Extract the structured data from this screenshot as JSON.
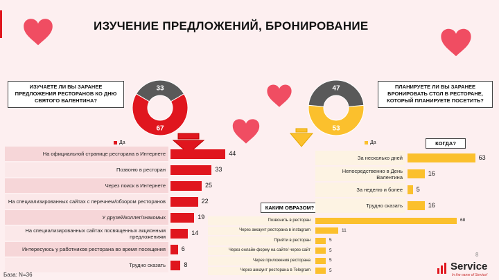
{
  "title": "ИЗУЧЕНИЕ ПРЕДЛОЖЕНИЙ, БРОНИРОВАНИЕ",
  "q1": "ИЗУЧАЕТЕ ЛИ ВЫ ЗАРАНЕЕ ПРЕДЛОЖЕНИЯ РЕСТОРАНОВ КО ДНЮ СВЯТОГО ВАЛЕНТИНА?",
  "q2": "ПЛАНИРУЕТЕ ЛИ ВЫ ЗАРАНЕЕ БРОНИРОВАТЬ СТОЛ В РЕСТОРАНЕ, КОТОРЫЙ ПЛАНИРУЕТЕ ПОСЕТИТЬ?",
  "when_label": "КОГДА?",
  "how_label": "КАКИМ ОБРАЗОМ?",
  "base": "База: N=36",
  "page_number": "8",
  "logo_text": "Service",
  "logo_tagline": "In the name of Service!",
  "colors": {
    "red": "#e0161e",
    "yellow": "#fbc02d",
    "grey": "#595959"
  },
  "chart_data": [
    {
      "type": "pie",
      "subtype": "donut",
      "values": [
        67,
        33
      ],
      "legend": [
        "Да"
      ],
      "colors": [
        "#e0161e",
        "#595959"
      ]
    },
    {
      "type": "bar",
      "orientation": "horizontal",
      "categories": [
        "На официальной странице ресторана в Интернете",
        "Позвоню в ресторан",
        "Через поиск в Интернете",
        "На специализированных сайтах с перечнем/обзором ресторанов",
        "У друзей/коллег/знакомых",
        "На специализированных сайтах посвященных акционным предложениям",
        "Интересуюсь у работников ресторана во время посещения",
        "Трудно сказать"
      ],
      "values": [
        44,
        33,
        25,
        22,
        19,
        14,
        6,
        8
      ],
      "color": "#e0161e"
    },
    {
      "type": "pie",
      "subtype": "donut",
      "values": [
        53,
        47
      ],
      "legend": [
        "Да"
      ],
      "colors": [
        "#fbc02d",
        "#595959"
      ]
    },
    {
      "type": "bar",
      "orientation": "horizontal",
      "title": "КОГДА?",
      "categories": [
        "За несколько дней",
        "Непосредственно в День Валентина",
        "За неделю и более",
        "Трудно сказать"
      ],
      "values": [
        63,
        16,
        5,
        16
      ],
      "color": "#fbc02d"
    },
    {
      "type": "bar",
      "orientation": "horizontal",
      "title": "КАКИМ ОБРАЗОМ?",
      "categories": [
        "Позвонить в ресторан",
        "Через аккаунт ресторана в instagram",
        "Прийти в ресторан",
        "Через онлайн-форму на сайте/ через сайт",
        "Через приложения ресторана",
        "Через аккаунт ресторана в Telegram"
      ],
      "values": [
        68,
        11,
        5,
        5,
        5,
        5
      ],
      "color": "#fbc02d"
    }
  ]
}
